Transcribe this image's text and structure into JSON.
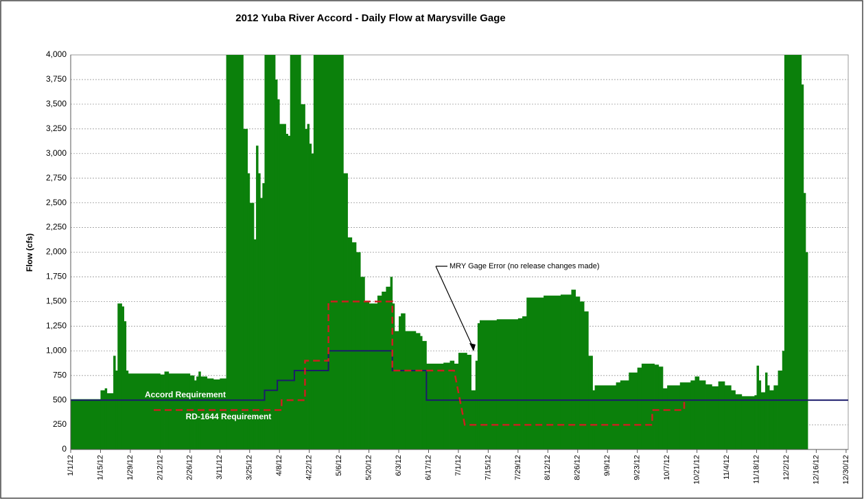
{
  "chart_data": {
    "type": "combo",
    "title": "2012 Yuba River Accord - Daily Flow at Marysville Gage",
    "y_label": "Flow (cfs)",
    "ylim": [
      0,
      4000
    ],
    "yticks": [
      0,
      250,
      500,
      750,
      {
        "value": 1000,
        "label": "1,000"
      },
      {
        "value": 1250,
        "label": "1,250"
      },
      {
        "value": 1500,
        "label": "1,500"
      },
      {
        "value": 1750,
        "label": "1,750"
      },
      {
        "value": 2000,
        "label": "2,000"
      },
      {
        "value": 2250,
        "label": "2,250"
      },
      {
        "value": 2500,
        "label": "2,500"
      },
      {
        "value": 2750,
        "label": "2,750"
      },
      {
        "value": 3000,
        "label": "3,000"
      },
      {
        "value": 3250,
        "label": "3,250"
      },
      {
        "value": 3500,
        "label": "3,500"
      },
      {
        "value": 3750,
        "label": "3,750"
      },
      {
        "value": 4000,
        "label": "4,000"
      }
    ],
    "xlim": [
      0,
      365
    ],
    "xticks": [
      {
        "value": 0,
        "label": "1/1/12"
      },
      {
        "value": 14,
        "label": "1/15/12"
      },
      {
        "value": 28,
        "label": "1/29/12"
      },
      {
        "value": 42,
        "label": "2/12/12"
      },
      {
        "value": 56,
        "label": "2/26/12"
      },
      {
        "value": 70,
        "label": "3/11/12"
      },
      {
        "value": 84,
        "label": "3/25/12"
      },
      {
        "value": 98,
        "label": "4/8/12"
      },
      {
        "value": 112,
        "label": "4/22/12"
      },
      {
        "value": 126,
        "label": "5/6/12"
      },
      {
        "value": 140,
        "label": "5/20/12"
      },
      {
        "value": 154,
        "label": "6/3/12"
      },
      {
        "value": 168,
        "label": "6/17/12"
      },
      {
        "value": 182,
        "label": "7/1/12"
      },
      {
        "value": 196,
        "label": "7/15/12"
      },
      {
        "value": 210,
        "label": "7/29/12"
      },
      {
        "value": 224,
        "label": "8/12/12"
      },
      {
        "value": 238,
        "label": "8/26/12"
      },
      {
        "value": 252,
        "label": "9/9/12"
      },
      {
        "value": 266,
        "label": "9/23/12"
      },
      {
        "value": 280,
        "label": "10/7/12"
      },
      {
        "value": 294,
        "label": "10/21/12"
      },
      {
        "value": 308,
        "label": "11/4/12"
      },
      {
        "value": 322,
        "label": "11/18/12"
      },
      {
        "value": 336,
        "label": "12/2/12"
      },
      {
        "value": 350,
        "label": "12/16/12"
      },
      {
        "value": 364,
        "label": "12/30/12"
      }
    ],
    "grid": true,
    "series": [
      {
        "type": "bar",
        "color": "#0b800b",
        "x": [
          0,
          14,
          16,
          17,
          20,
          21,
          22,
          24,
          25,
          26,
          27,
          42,
          44,
          46,
          56,
          58,
          59,
          60,
          61,
          64,
          67,
          70,
          73,
          81,
          83,
          84,
          86,
          87,
          88,
          89,
          90,
          91,
          96,
          97,
          98,
          101,
          102,
          103,
          108,
          110,
          111,
          112,
          113,
          114,
          128,
          130,
          132,
          134,
          136,
          138,
          140,
          144,
          146,
          148,
          150,
          151,
          152,
          154,
          155,
          157,
          162,
          164,
          165,
          167,
          175,
          178,
          180,
          182,
          186,
          188,
          190,
          191,
          192,
          200,
          210,
          212,
          214,
          222,
          230,
          235,
          237,
          239,
          241,
          243,
          245,
          246,
          256,
          258,
          262,
          266,
          268,
          274,
          276,
          278,
          280,
          286,
          291,
          293,
          295,
          298,
          301,
          304,
          307,
          310,
          312,
          315,
          321,
          322,
          323,
          324,
          326,
          327,
          328,
          330,
          332,
          334,
          335,
          343,
          344,
          345,
          346
        ],
        "values": [
          510,
          600,
          620,
          570,
          950,
          800,
          1480,
          1450,
          1300,
          800,
          770,
          760,
          790,
          770,
          750,
          700,
          740,
          790,
          740,
          720,
          710,
          720,
          4000,
          3250,
          2800,
          2500,
          2130,
          3080,
          2800,
          2550,
          2700,
          4000,
          3750,
          3550,
          3300,
          3200,
          3180,
          4000,
          3500,
          3250,
          3300,
          3100,
          3000,
          4000,
          2800,
          2150,
          2100,
          2000,
          1750,
          1500,
          1480,
          1560,
          1600,
          1650,
          1750,
          1480,
          1200,
          1350,
          1380,
          1200,
          1180,
          1150,
          1100,
          870,
          880,
          900,
          870,
          980,
          960,
          600,
          900,
          1280,
          1310,
          1320,
          1330,
          1350,
          1540,
          1560,
          1570,
          1620,
          1550,
          1500,
          1400,
          950,
          600,
          650,
          680,
          700,
          780,
          830,
          870,
          860,
          840,
          620,
          650,
          680,
          700,
          740,
          700,
          660,
          640,
          690,
          650,
          600,
          560,
          540,
          550,
          850,
          700,
          580,
          780,
          650,
          600,
          650,
          800,
          1000,
          4000,
          3700,
          2600,
          2000,
          null
        ]
      },
      {
        "type": "line",
        "name": "Accord Requirement",
        "color": "#1b1b6b",
        "dash": false,
        "x": [
          0,
          91,
          91,
          97,
          97,
          105,
          105,
          121,
          121,
          151,
          151,
          167,
          167,
          365
        ],
        "values": [
          500,
          500,
          600,
          600,
          700,
          700,
          800,
          800,
          1000,
          1000,
          800,
          800,
          500,
          500
        ]
      },
      {
        "type": "line",
        "name": "RD-1644 Requirement",
        "color": "#cc1f1f",
        "dash": true,
        "x": [
          39,
          99,
          99,
          110,
          110,
          121,
          121,
          151,
          151,
          180,
          185,
          273,
          273,
          288,
          288,
          289
        ],
        "values": [
          400,
          400,
          500,
          500,
          900,
          900,
          1500,
          1500,
          800,
          800,
          250,
          250,
          400,
          400,
          500,
          500
        ]
      }
    ],
    "annotation": "MRY Gage Error (no release changes made)"
  }
}
